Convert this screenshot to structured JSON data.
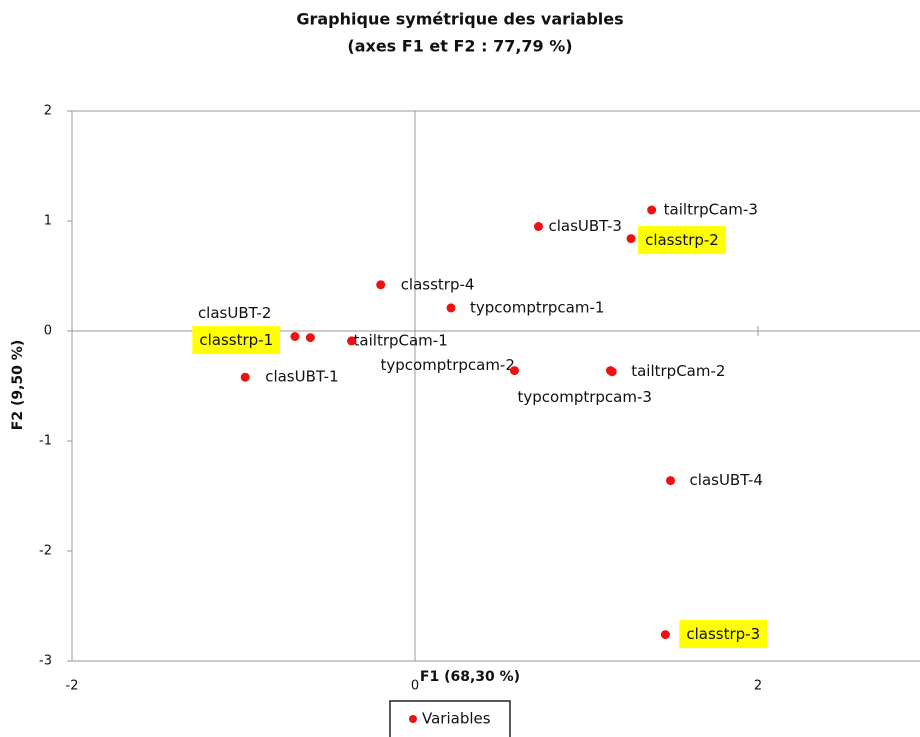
{
  "chart_data": {
    "type": "scatter",
    "title": "Graphique symétrique des variables",
    "subtitle": "(axes F1 et F2 : 77,79 %)",
    "x_label": "F1 (68,30 %)",
    "y_label": "F2 (9,50 %)",
    "xlim": [
      -2,
      3
    ],
    "ylim": [
      -3,
      2
    ],
    "xticks": [
      -2,
      0,
      2
    ],
    "yticks": [
      -3,
      -2,
      -1,
      0,
      1,
      2
    ],
    "series": [
      {
        "name": "Variables",
        "color": "#ee1111",
        "labels": [
          "tailtrpCam-3",
          "classtrp-2",
          "clasUBT-3",
          "classtrp-4",
          "typcomptrpcam-1",
          "clasUBT-2",
          "classtrp-1",
          "tailtrpCam-1",
          "clasUBT-1",
          "typcomptrpcam-2",
          "tailtrpCam-2",
          "typcomptrpcam-3",
          "clasUBT-4",
          "classtrp-3"
        ],
        "x": [
          1.38,
          1.26,
          0.72,
          -0.2,
          0.21,
          -0.7,
          -0.61,
          -0.37,
          -0.99,
          0.58,
          1.15,
          1.14,
          1.49,
          1.46
        ],
        "values": [
          1.1,
          0.84,
          0.95,
          0.42,
          0.21,
          -0.05,
          -0.06,
          -0.09,
          -0.42,
          -0.36,
          -0.37,
          -0.36,
          -1.36,
          -2.76
        ],
        "highlight": [
          false,
          true,
          false,
          false,
          false,
          false,
          true,
          false,
          false,
          false,
          false,
          false,
          false,
          true
        ]
      }
    ]
  }
}
